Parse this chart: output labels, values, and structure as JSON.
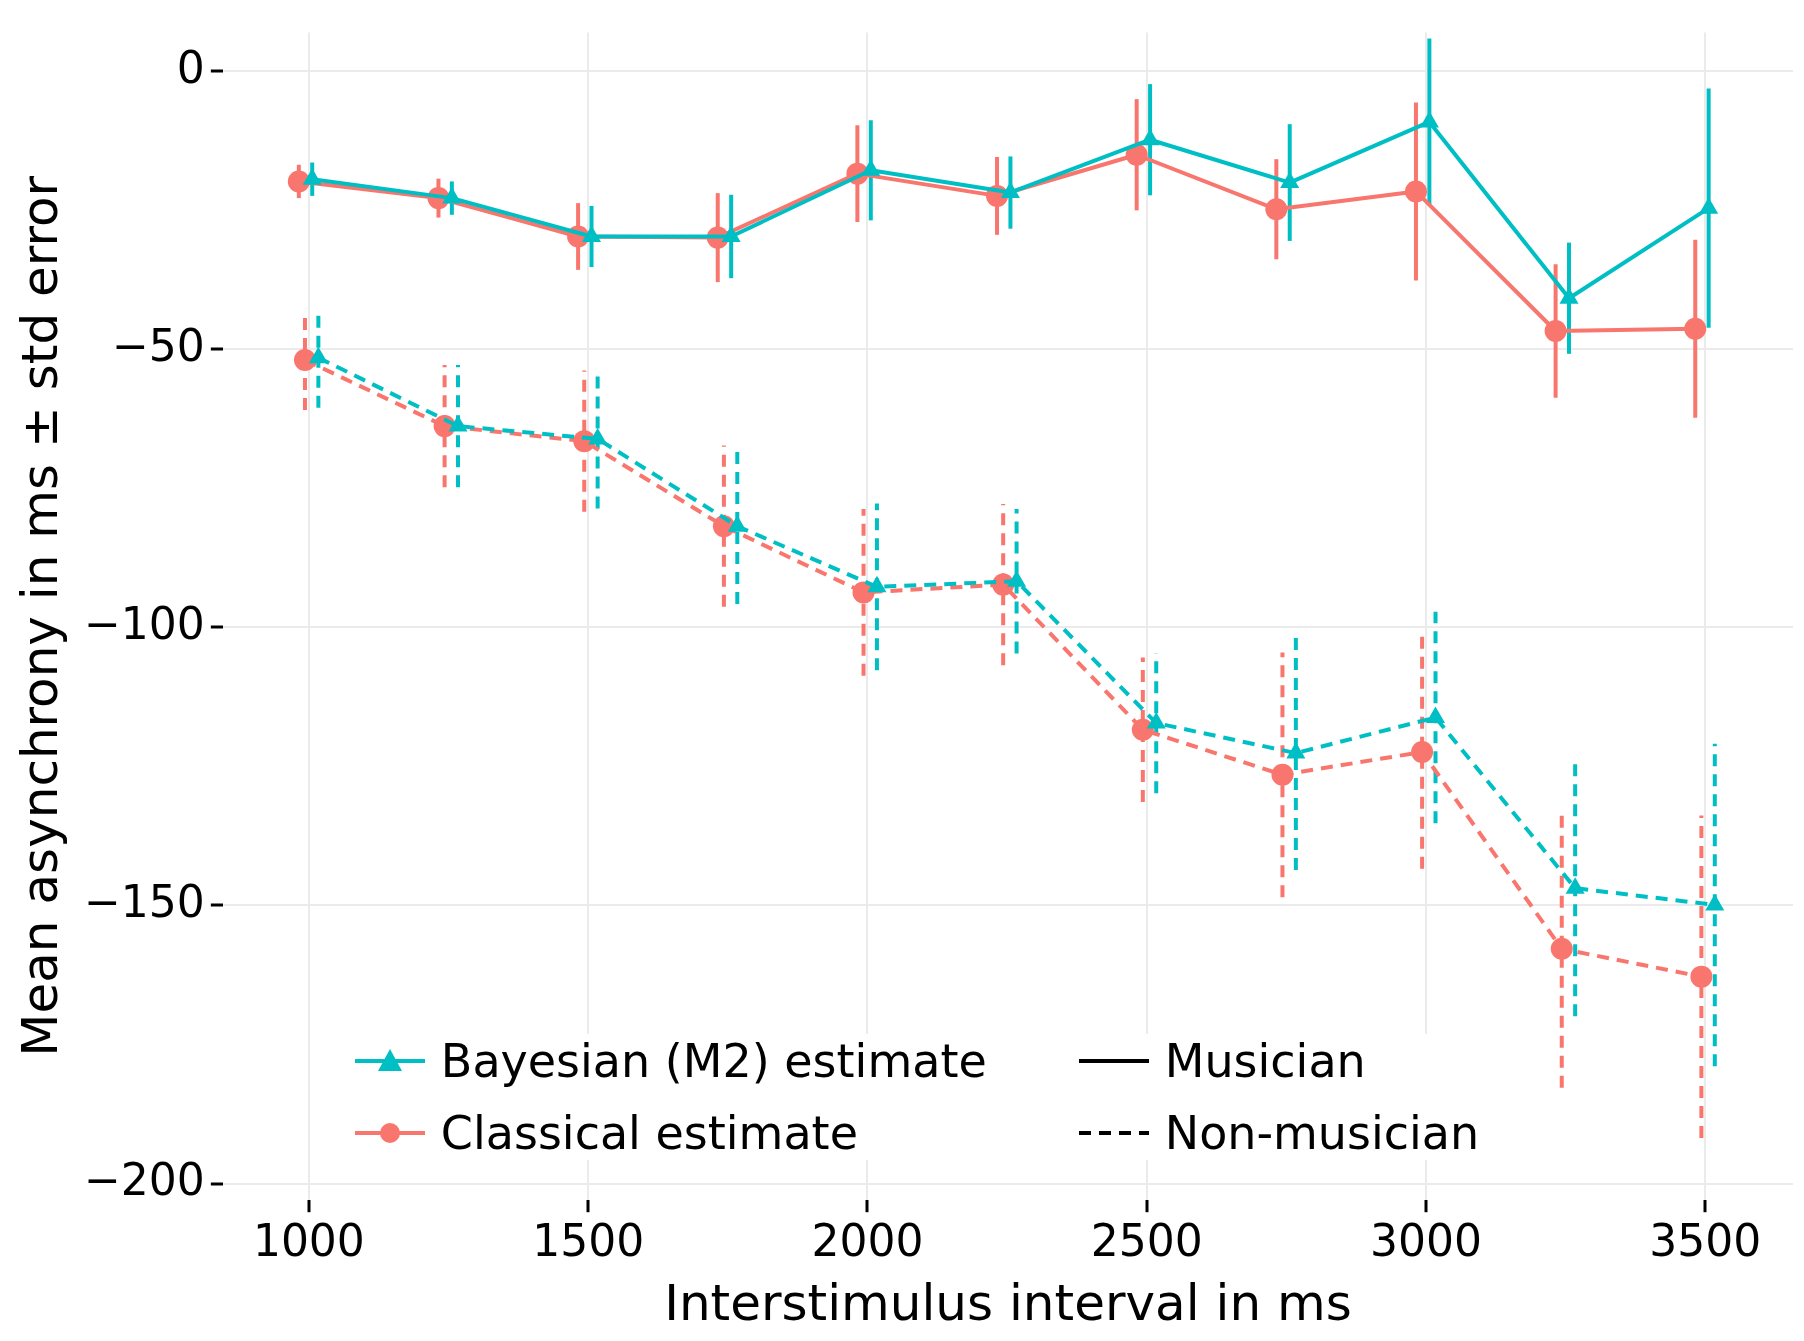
{
  "chart_data": {
    "type": "line",
    "xlabel": "Interstimulus interval in ms",
    "ylabel": "Mean asynchrony in ms ± std error",
    "xlim": [
      846,
      3657
    ],
    "ylim": [
      -203,
      7
    ],
    "xticks": [
      1000,
      1500,
      2000,
      2500,
      3000,
      3500
    ],
    "yticks": [
      {
        "value": -200,
        "label": "−200"
      },
      {
        "value": -150,
        "label": "−150"
      },
      {
        "value": -100,
        "label": "−100"
      },
      {
        "value": -50,
        "label": "−50"
      },
      0
    ],
    "grid": true,
    "legend": "bottom left",
    "series": [
      {
        "name": "Bayesian (M2) estimate",
        "color": "#00bfc4",
        "marker": "triangle",
        "line_style": "solid",
        "x": [
          1006,
          1256,
          1506,
          1756,
          2006,
          2256,
          2506,
          2756,
          3006,
          3256,
          3506
        ],
        "values": [
          -19.4,
          -22.8,
          -29.7,
          -29.7,
          -17.8,
          -21.8,
          -12.3,
          -20,
          -9.1,
          -40.8,
          -24.6
        ],
        "errors": [
          3,
          3,
          5.5,
          7.5,
          9,
          6.5,
          10,
          10.5,
          15,
          10,
          21.5
        ]
      },
      {
        "name": "Classical estimate",
        "color": "#f8766d",
        "marker": "circle",
        "line_style": "solid",
        "x": [
          982,
          1232,
          1482,
          1732,
          1982,
          2232,
          2482,
          2732,
          2982,
          3232,
          3482
        ],
        "values": [
          -19.8,
          -22.8,
          -29.7,
          -29.9,
          -18.4,
          -22.4,
          -15,
          -24.8,
          -21.6,
          -46.7,
          -46.3
        ],
        "errors": [
          3,
          3.5,
          6,
          8,
          8.7,
          7,
          10,
          9,
          16,
          12,
          16
        ]
      },
      {
        "name": "Musician",
        "color": "#000000",
        "marker": "none",
        "line_style": "solid"
      },
      {
        "name": "Non-musician",
        "color": "#000000",
        "marker": "none",
        "line_style": "dashed"
      },
      {
        "color": "#00bfc4",
        "marker": "triangle",
        "line_style": "dashed",
        "x": [
          1017,
          1267,
          1517,
          1767,
          2017,
          2267,
          2517,
          2767,
          3017,
          3267,
          3517
        ],
        "values": [
          -51.5,
          -63.8,
          -66.1,
          -81.8,
          -92.7,
          -91.7,
          -117.2,
          -122.6,
          -116.2,
          -146.9,
          -149.9
        ],
        "errors": [
          9,
          11,
          12.5,
          14,
          15,
          13,
          12.6,
          21,
          19,
          23,
          29
        ]
      },
      {
        "color": "#f8766d",
        "marker": "circle",
        "line_style": "dashed",
        "x": [
          993,
          1243,
          1493,
          1743,
          1993,
          2243,
          2493,
          2743,
          2993,
          3243,
          3493
        ],
        "values": [
          -51.9,
          -63.8,
          -66.5,
          -81.8,
          -93.7,
          -92.3,
          -118.4,
          -126.5,
          -122.4,
          -157.8,
          -162.8
        ],
        "errors": [
          9,
          11,
          12.7,
          14.5,
          15,
          14.5,
          13,
          22,
          21,
          25,
          29
        ]
      }
    ]
  }
}
